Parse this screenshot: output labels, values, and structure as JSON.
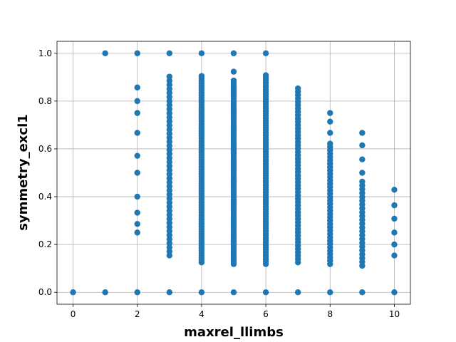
{
  "chart_data": {
    "type": "scatter",
    "xlabel": "maxrel_llimbs",
    "ylabel": "symmetry_excl1",
    "xlim": [
      -0.5,
      10.5
    ],
    "ylim": [
      -0.05,
      1.05
    ],
    "xticks": [
      0,
      2,
      4,
      6,
      8,
      10
    ],
    "yticks": [
      "0.0",
      "0.2",
      "0.4",
      "0.6",
      "0.8",
      "1.0"
    ],
    "grid": true,
    "marker_color": "#1f77b4",
    "columns": [
      {
        "x": 0,
        "y": [
          0.0
        ]
      },
      {
        "x": 1,
        "y": [
          0.0,
          1.0
        ]
      },
      {
        "x": 2,
        "y": [
          0.0,
          0.25,
          0.286,
          0.333,
          0.4,
          0.5,
          0.571,
          0.667,
          0.75,
          0.8,
          0.857,
          1.0
        ]
      },
      {
        "x": 3,
        "y": [
          0.0,
          1.0
        ],
        "range": [
          0.154,
          0.909
        ],
        "step": 0.017
      },
      {
        "x": 4,
        "y": [
          0.0,
          1.0
        ],
        "range": [
          0.125,
          0.909
        ],
        "step": 0.01
      },
      {
        "x": 5,
        "y": [
          0.0,
          1.0,
          0.923
        ],
        "range": [
          0.118,
          0.889
        ],
        "step": 0.008
      },
      {
        "x": 6,
        "y": [
          0.0,
          1.0
        ],
        "range": [
          0.118,
          0.909
        ],
        "step": 0.01
      },
      {
        "x": 7,
        "y": [
          0.0
        ],
        "range": [
          0.125,
          0.857
        ],
        "step": 0.014
      },
      {
        "x": 8,
        "y": [
          0.0,
          0.75,
          0.714,
          0.667
        ],
        "range": [
          0.118,
          0.625
        ],
        "step": 0.014
      },
      {
        "x": 9,
        "y": [
          0.0,
          0.667,
          0.615,
          0.556,
          0.5
        ],
        "range": [
          0.111,
          0.467
        ],
        "step": 0.016
      },
      {
        "x": 10,
        "y": [
          0.0,
          0.154,
          0.2,
          0.25,
          0.308,
          0.364,
          0.429
        ]
      }
    ]
  }
}
